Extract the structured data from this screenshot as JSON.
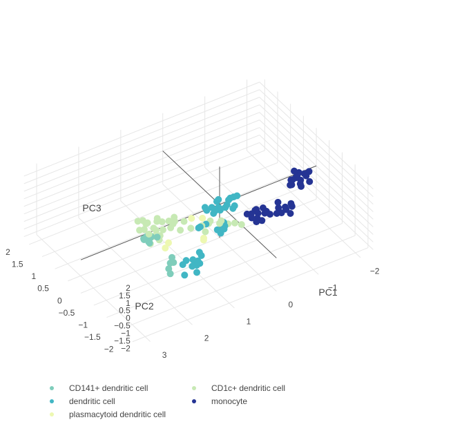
{
  "chart_data": {
    "type": "scatter",
    "scatter_3d": true,
    "xlabel": "PC1",
    "ylabel": "PC2",
    "zlabel": "PC3",
    "x_ticks": [
      "−2",
      "−1",
      "0",
      "1",
      "2",
      "3"
    ],
    "y_ticks": [
      "−2",
      "−1.5",
      "−1",
      "−0.5",
      "0",
      "0.5",
      "1",
      "1.5",
      "2"
    ],
    "z_ticks": [
      "−2",
      "−1.5",
      "−1",
      "−0.5",
      "0",
      "0.5",
      "1",
      "1.5",
      "2"
    ],
    "xlim": [
      -2.3,
      3.3
    ],
    "ylim": [
      -2.2,
      2.2
    ],
    "zlim": [
      -2.2,
      2.5
    ],
    "grid": true,
    "legend_position": "bottom",
    "series": [
      {
        "name": "CD141+ dendritic cell",
        "color": "#7fcdbb",
        "points": [
          [
            2.4,
            -2.0,
            2.0
          ],
          [
            2.3,
            -1.9,
            2.1
          ],
          [
            2.5,
            -2.1,
            1.9
          ],
          [
            2.2,
            -1.8,
            1.5
          ],
          [
            2.4,
            -2.0,
            1.3
          ],
          [
            1.4,
            0.4,
            -1.3
          ],
          [
            1.5,
            0.5,
            -1.4
          ],
          [
            1.3,
            0.3,
            -1.2
          ],
          [
            1.45,
            0.35,
            -1.5
          ],
          [
            1.35,
            0.45,
            -1.35
          ],
          [
            1.55,
            0.4,
            -1.25
          ],
          [
            1.4,
            0.55,
            -1.45
          ],
          [
            1.5,
            0.3,
            -1.3
          ]
        ]
      },
      {
        "name": "CD1c+ dendritic cell",
        "color": "#c7e9b4",
        "points": [
          [
            1.6,
            -0.3,
            0.2
          ],
          [
            1.7,
            -0.2,
            0.1
          ],
          [
            1.8,
            -0.25,
            -0.2
          ],
          [
            1.65,
            -0.35,
            0.05
          ],
          [
            1.3,
            0.8,
            -1.5
          ],
          [
            1.2,
            0.9,
            -1.4
          ],
          [
            1.1,
            1.0,
            -1.6
          ],
          [
            1.25,
            0.7,
            -1.7
          ],
          [
            1.0,
            0.8,
            -1.3
          ],
          [
            1.15,
            1.1,
            -1.55
          ],
          [
            1.35,
            0.9,
            -1.65
          ],
          [
            0.9,
            0.95,
            -1.45
          ],
          [
            1.05,
            0.75,
            -1.75
          ],
          [
            1.3,
            1.05,
            -1.35
          ],
          [
            0.8,
            0.5,
            -1.2
          ],
          [
            0.7,
            0.6,
            -1.3
          ],
          [
            0.6,
            0.4,
            -1.1
          ],
          [
            0.75,
            0.3,
            -1.35
          ],
          [
            0.65,
            0.7,
            -1.25
          ],
          [
            0.2,
            0.1,
            -1.2
          ],
          [
            0.1,
            0.2,
            -1.3
          ],
          [
            0.0,
            0.0,
            -1.25
          ],
          [
            0.3,
            0.2,
            -1.4
          ],
          [
            -0.1,
            0.1,
            -1.35
          ],
          [
            -0.3,
            -0.1,
            -1.4
          ],
          [
            -0.2,
            0.0,
            -1.5
          ],
          [
            -0.4,
            -0.2,
            -1.45
          ],
          [
            0.4,
            -0.1,
            -1.2
          ],
          [
            0.5,
            0.3,
            -1.5
          ],
          [
            1.0,
            0.6,
            -1.0
          ],
          [
            1.1,
            0.4,
            -1.1
          ],
          [
            0.9,
            0.5,
            -0.9
          ],
          [
            1.2,
            0.6,
            -1.2
          ],
          [
            0.95,
            0.35,
            -1.05
          ]
        ]
      },
      {
        "name": "dendritic cell",
        "color": "#41b6c4",
        "points": [
          [
            0.8,
            -1.0,
            2.3
          ],
          [
            0.7,
            -1.1,
            2.35
          ],
          [
            0.9,
            -0.9,
            2.25
          ],
          [
            0.6,
            -1.2,
            2.4
          ],
          [
            0.5,
            -1.1,
            2.3
          ],
          [
            0.4,
            -1.0,
            2.35
          ],
          [
            0.3,
            -0.9,
            2.2
          ],
          [
            0.2,
            -1.0,
            2.4
          ],
          [
            0.85,
            -1.15,
            2.2
          ],
          [
            0.65,
            -0.95,
            2.45
          ],
          [
            0.45,
            -1.25,
            2.25
          ],
          [
            0.75,
            -1.05,
            2.1
          ],
          [
            0.55,
            -0.85,
            2.3
          ],
          [
            0.35,
            -1.15,
            2.15
          ],
          [
            0.25,
            -0.95,
            2.3
          ],
          [
            0.95,
            -1.05,
            2.35
          ],
          [
            0.6,
            -1.0,
            1.9
          ],
          [
            1.8,
            -1.9,
            1.4
          ],
          [
            1.9,
            -1.8,
            1.3
          ],
          [
            1.7,
            -2.0,
            1.2
          ],
          [
            1.85,
            -1.95,
            1.1
          ],
          [
            1.75,
            -1.85,
            0.9
          ],
          [
            1.95,
            -1.75,
            1.0
          ],
          [
            1.6,
            -1.9,
            1.45
          ],
          [
            1.8,
            -2.05,
            0.8
          ],
          [
            1.65,
            -1.8,
            0.7
          ],
          [
            2.0,
            -1.9,
            0.6
          ],
          [
            1.5,
            -1.6,
            0.5
          ],
          [
            1.4,
            -1.5,
            0.8
          ],
          [
            0.2,
            -0.5,
            -0.6
          ],
          [
            0.3,
            -0.4,
            -0.7
          ],
          [
            0.25,
            -0.45,
            -0.9
          ],
          [
            0.1,
            -0.3,
            -1.0
          ],
          [
            0.0,
            -0.2,
            -1.1
          ],
          [
            0.4,
            0.1,
            -1.2
          ],
          [
            0.2,
            0.2,
            -1.4
          ],
          [
            -0.1,
            0.0,
            -1.3
          ],
          [
            0.5,
            0.0,
            -1.0
          ]
        ]
      },
      {
        "name": "monocyte",
        "color": "#253494",
        "points": [
          [
            -0.7,
            -1.4,
            1.3
          ],
          [
            -0.6,
            -1.3,
            1.2
          ],
          [
            -0.8,
            -1.5,
            1.4
          ],
          [
            -0.5,
            -1.4,
            1.1
          ],
          [
            -0.65,
            -1.2,
            1.35
          ],
          [
            -0.75,
            -1.35,
            1.0
          ],
          [
            -0.55,
            -1.5,
            1.25
          ],
          [
            -0.9,
            -1.3,
            1.15
          ],
          [
            -0.4,
            -1.3,
            1.0
          ],
          [
            -0.7,
            -1.6,
            1.2
          ],
          [
            -0.3,
            -1.0,
            0.7
          ],
          [
            -0.2,
            -0.9,
            0.6
          ],
          [
            -0.4,
            -1.1,
            0.75
          ],
          [
            -0.25,
            -1.05,
            0.5
          ],
          [
            -0.35,
            -0.85,
            0.65
          ],
          [
            -0.15,
            -1.0,
            0.55
          ],
          [
            -0.45,
            -0.95,
            0.8
          ],
          [
            -0.3,
            -1.15,
            0.45
          ],
          [
            -0.1,
            -0.9,
            0.7
          ],
          [
            -0.5,
            -1.0,
            0.6
          ],
          [
            -0.2,
            -1.1,
            0.4
          ],
          [
            -0.35,
            -0.8,
            0.5
          ],
          [
            -1.6,
            -0.4,
            0.8
          ],
          [
            -1.7,
            -0.3,
            0.7
          ],
          [
            -1.5,
            -0.5,
            0.9
          ],
          [
            -1.8,
            -0.35,
            0.6
          ],
          [
            -1.65,
            -0.45,
            0.5
          ],
          [
            -1.55,
            -0.3,
            0.4
          ],
          [
            -1.75,
            -0.5,
            0.75
          ],
          [
            -1.45,
            -0.4,
            0.65
          ],
          [
            -1.85,
            -0.45,
            0.85
          ],
          [
            -1.6,
            -0.55,
            0.3
          ],
          [
            -1.7,
            -0.25,
            0.55
          ],
          [
            -1.5,
            -0.35,
            0.2
          ],
          [
            -1.4,
            -0.45,
            0.45
          ],
          [
            -1.8,
            -0.55,
            0.4
          ],
          [
            -1.65,
            -0.2,
            0.7
          ],
          [
            -1.55,
            -0.6,
            0.6
          ]
        ]
      },
      {
        "name": "plasmacytoid dendritic cell",
        "color": "#edf8b1",
        "points": [
          [
            1.3,
            -1.5,
            1.5
          ],
          [
            1.6,
            -0.5,
            -0.3
          ],
          [
            1.4,
            -0.3,
            -0.5
          ],
          [
            0.3,
            0.6,
            -1.55
          ],
          [
            0.1,
            0.5,
            -1.6
          ],
          [
            0.5,
            -0.2,
            -1.35
          ]
        ]
      }
    ]
  },
  "legend": {
    "items": [
      {
        "label": "CD141+ dendritic cell",
        "color": "#7fcdbb"
      },
      {
        "label": "CD1c+ dendritic cell",
        "color": "#c7e9b4"
      },
      {
        "label": "dendritic cell",
        "color": "#41b6c4"
      },
      {
        "label": "monocyte",
        "color": "#253494"
      },
      {
        "label": "plasmacytoid dendritic cell",
        "color": "#edf8b1"
      }
    ]
  }
}
